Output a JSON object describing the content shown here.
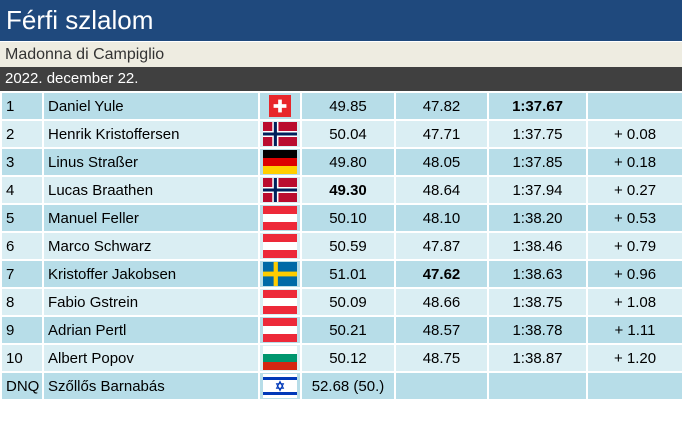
{
  "header": {
    "title": "Férfi szlalom",
    "venue": "Madonna di Campiglio",
    "date": "2022. december 22."
  },
  "rows": [
    [
      "1",
      "Daniel Yule",
      "49.85",
      "47.82",
      "1:37.67"
    ],
    [
      "2",
      "Henrik Kristoffersen",
      "50.04",
      "47.71",
      "1:37.75",
      "+ 0.08"
    ],
    [
      "3",
      "Linus Straßer",
      "49.80",
      "48.05",
      "1:37.85",
      "+ 0.18"
    ],
    [
      "4",
      "Lucas Braathen",
      "49.30",
      "48.64",
      "1:37.94",
      "+ 0.27"
    ],
    [
      "5",
      "Manuel Feller",
      "50.10",
      "48.10",
      "1:38.20",
      "+ 0.53"
    ],
    [
      "6",
      "Marco Schwarz",
      "50.59",
      "47.87",
      "1:38.46",
      "+ 0.79"
    ],
    [
      "7",
      "Kristoffer Jakobsen",
      "51.01",
      "47.62",
      "1:38.63",
      "+ 0.96"
    ],
    [
      "8",
      "Fabio Gstrein",
      "50.09",
      "48.66",
      "1:38.75",
      "+ 1.08"
    ],
    [
      "9",
      "Adrian Pertl",
      "50.21",
      "48.57",
      "1:38.78",
      "+ 1.11"
    ],
    [
      "10",
      "Albert Popov",
      "50.12",
      "48.75",
      "1:38.87",
      "+ 1.20"
    ],
    [
      "DNQ",
      "Szőllős Barnabás",
      "52.68 (50.)"
    ]
  ]
}
